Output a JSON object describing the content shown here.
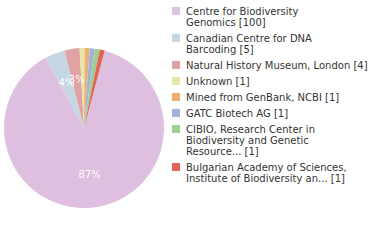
{
  "chart_data": {
    "type": "pie",
    "categories": [
      "Centre for Biodiversity\nGenomics [100]",
      "Canadian Centre for DNA\nBarcoding [5]",
      "Natural History Museum, London [4]",
      "Unknown [1]",
      "Mined from GenBank, NCBI [1]",
      "GATC Biotech AG [1]",
      "CIBIO, Research Center in\nBiodiversity and Genetic\nResource... [1]",
      "Bulgarian Academy of Sciences,\nInstitute of Biodiversity an... [1]"
    ],
    "values": [
      87,
      4,
      3,
      1,
      1,
      1,
      1,
      1
    ],
    "value_labels": [
      "87%",
      "4%",
      "3%",
      null,
      null,
      null,
      null,
      null
    ],
    "data_labels": true,
    "legend": "right",
    "colors": [
      "#dfbfdf",
      "#c6d7e4",
      "#dfa3a3",
      "#e6e6a6",
      "#eeb070",
      "#9fb3da",
      "#9fcf8f",
      "#e06454"
    ]
  }
}
